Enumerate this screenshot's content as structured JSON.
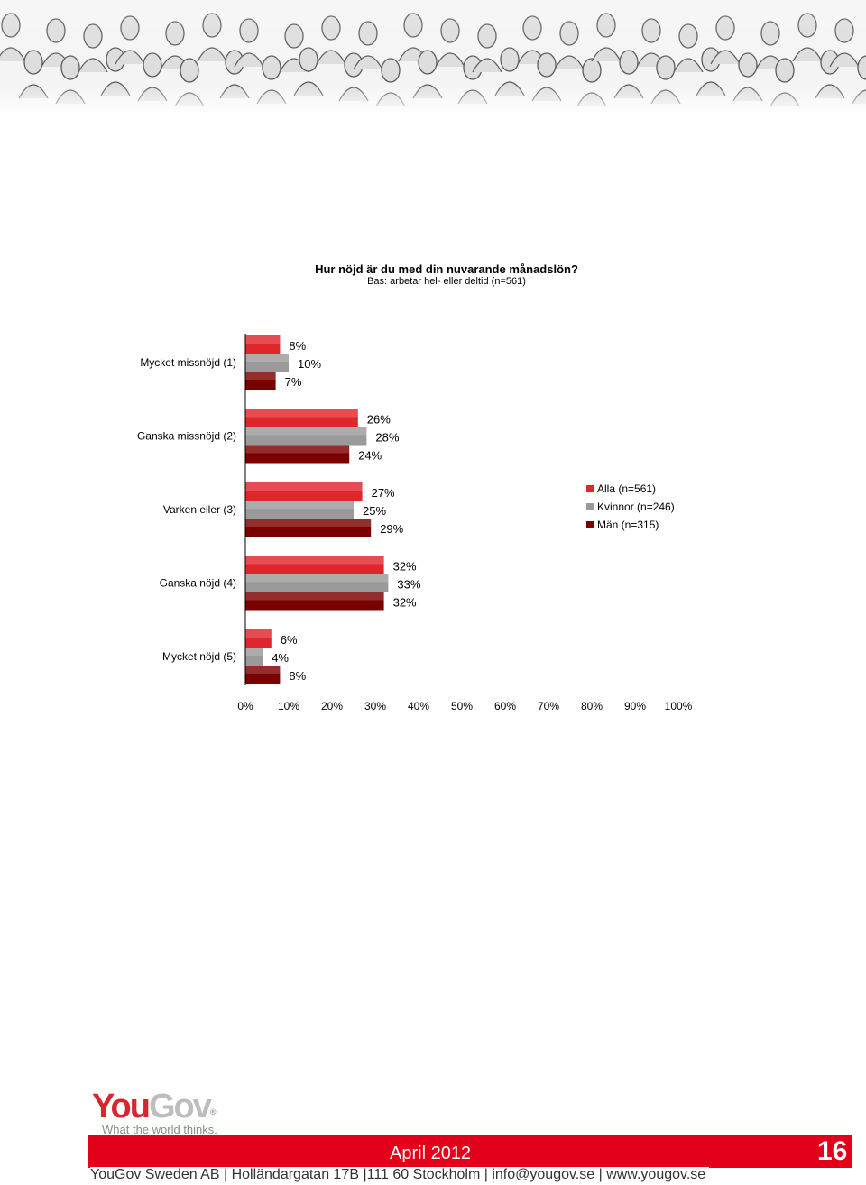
{
  "chart_data": {
    "type": "bar",
    "orientation": "horizontal",
    "title": "Hur nöjd är du med din nuvarande månadslön?",
    "subtitle": "Bas: arbetar hel- eller deltid (n=561)",
    "categories": [
      "Mycket missnöjd (1)",
      "Ganska missnöjd (2)",
      "Varken eller (3)",
      "Ganska nöjd (4)",
      "Mycket nöjd (5)"
    ],
    "series": [
      {
        "name": "Alla (n=561)",
        "color": "#e0262d",
        "values": [
          8,
          26,
          27,
          32,
          6
        ]
      },
      {
        "name": "Kvinnor (n=246)",
        "color": "#9a9a9a",
        "values": [
          10,
          28,
          25,
          33,
          4
        ]
      },
      {
        "name": "Män (n=315)",
        "color": "#7a0000",
        "values": [
          7,
          24,
          29,
          32,
          8
        ]
      }
    ],
    "xlim": [
      0,
      100
    ],
    "x_ticks": [
      "0%",
      "10%",
      "20%",
      "30%",
      "40%",
      "50%",
      "60%",
      "70%",
      "80%",
      "90%",
      "100%"
    ],
    "value_suffix": "%",
    "legend_position": "right",
    "grid": false
  },
  "logo": {
    "brand": "YouGov",
    "tagline": "What the world thinks."
  },
  "footer": {
    "date": "April 2012",
    "page_number": "16",
    "address": "YouGov Sweden AB | Holländargatan 17B |111 60 Stockholm | info@yougov.se | www.yougov.se"
  }
}
